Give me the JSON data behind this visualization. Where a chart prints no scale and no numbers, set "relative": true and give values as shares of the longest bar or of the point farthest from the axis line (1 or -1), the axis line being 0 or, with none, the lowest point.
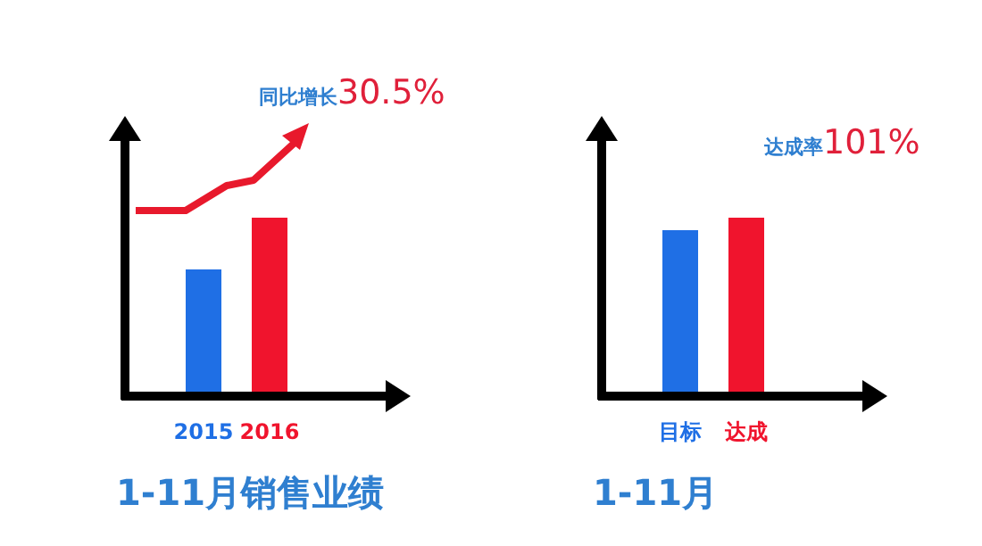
{
  "chart_data": [
    {
      "type": "bar",
      "title": "1-11月销售业绩",
      "categories": [
        "2015",
        "2016"
      ],
      "values": [
        0.71,
        1
      ],
      "colors": [
        "#1f6fe5",
        "#f0142d"
      ],
      "relative": true,
      "annotations": [
        "同比增长30.5%"
      ]
    },
    {
      "type": "bar",
      "title": "1-11月",
      "categories": [
        "目标",
        "达成"
      ],
      "values": [
        0.93,
        1
      ],
      "colors": [
        "#1f6fe5",
        "#f0142d"
      ],
      "relative": true,
      "annotations": [
        "达成率101%"
      ]
    }
  ]
}
